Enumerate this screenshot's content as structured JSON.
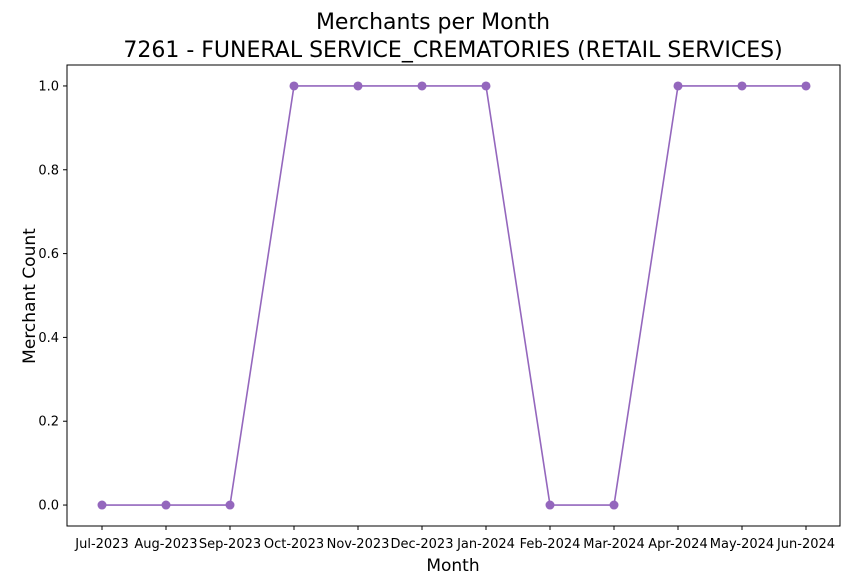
{
  "chart_data": {
    "type": "line",
    "title": "Merchants per Month",
    "subtitle": "7261 - FUNERAL SERVICE_CREMATORIES (RETAIL SERVICES)",
    "xlabel": "Month",
    "ylabel": "Merchant Count",
    "categories": [
      "Jul-2023",
      "Aug-2023",
      "Sep-2023",
      "Oct-2023",
      "Nov-2023",
      "Dec-2023",
      "Jan-2024",
      "Feb-2024",
      "Mar-2024",
      "Apr-2024",
      "May-2024",
      "Jun-2024"
    ],
    "series": [
      {
        "values": [
          0,
          0,
          0,
          1,
          1,
          1,
          1,
          0,
          0,
          1,
          1,
          1
        ],
        "color": "#9467bd",
        "marker": "circle"
      }
    ],
    "yticks": [
      "0.0",
      "0.2",
      "0.4",
      "0.6",
      "0.8",
      "1.0"
    ],
    "ylim": [
      -0.05,
      1.05
    ],
    "grid": false
  }
}
